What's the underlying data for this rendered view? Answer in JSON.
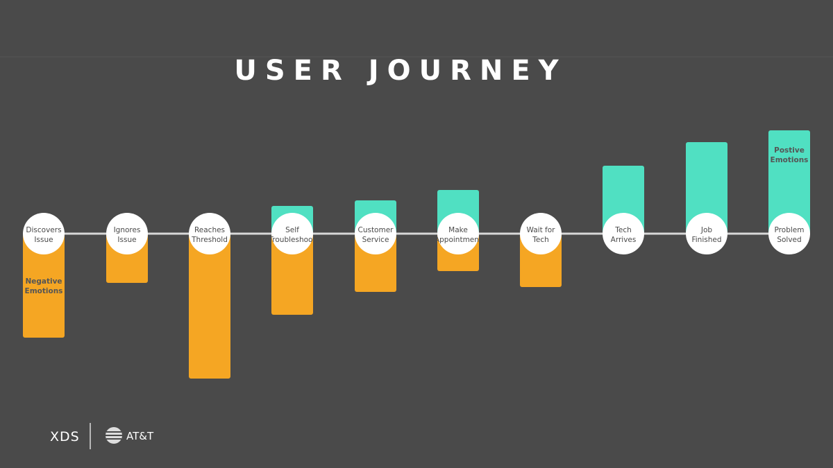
{
  "title": "USER JOURNEY",
  "steps": [
    [
      "Discovers",
      "Issue"
    ],
    [
      "Ignores",
      "Issue"
    ],
    [
      "Reaches",
      "Threshold"
    ],
    [
      "Self",
      "Troubleshoot"
    ],
    [
      "Customer",
      "Service"
    ],
    [
      "Make",
      "Appointment"
    ],
    [
      "Wait for",
      "Tech"
    ],
    [
      "Tech",
      "Arrives"
    ],
    [
      "Job",
      "Finished"
    ],
    [
      "Problem",
      "Solved"
    ]
  ],
  "negative_label": [
    "Negative",
    "Emotions"
  ],
  "positive_label": [
    "Postive",
    "Emotions"
  ],
  "footer": {
    "brand": "XDS",
    "company": "AT&T"
  }
}
